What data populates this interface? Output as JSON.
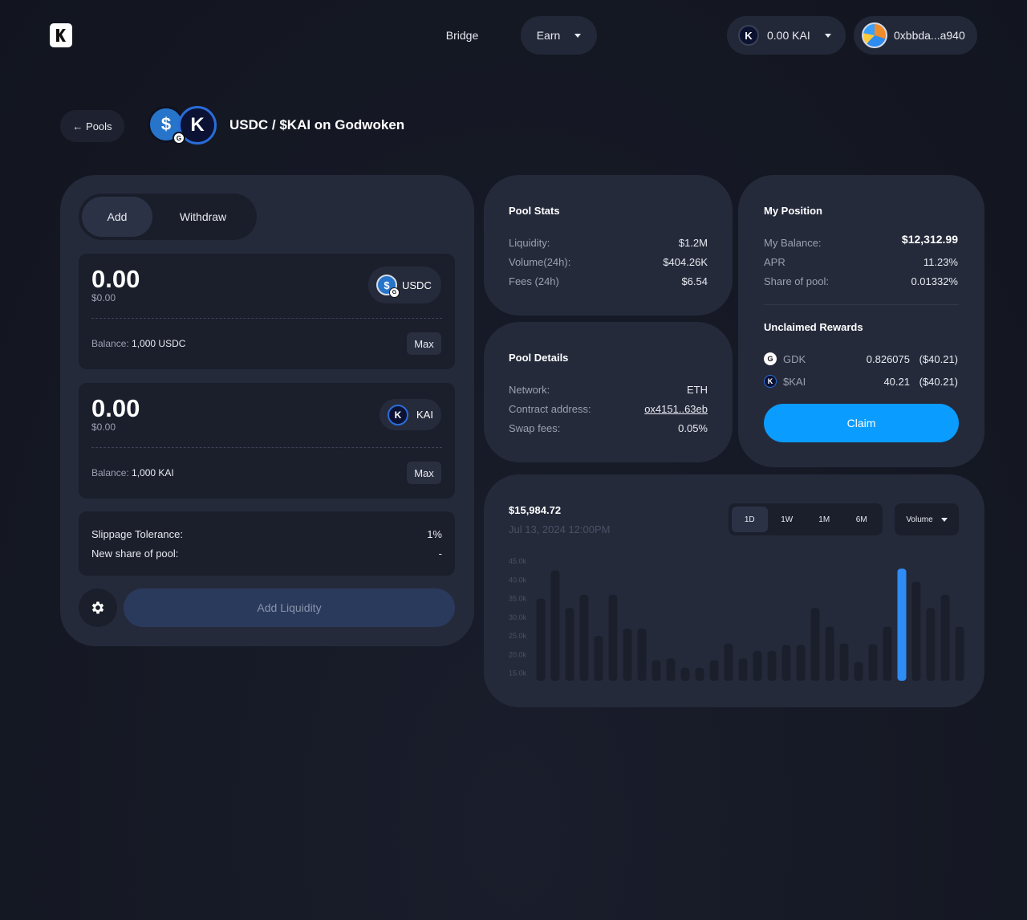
{
  "header": {
    "nav_bridge": "Bridge",
    "nav_earn": "Earn",
    "balance": "0.00 KAI",
    "address": "0xbbda...a940"
  },
  "title_row": {
    "back_label": "← Pools",
    "pool_title": "USDC / $KAI on Godwoken"
  },
  "liquidity": {
    "tabs": [
      "Add",
      "Withdraw"
    ],
    "active_tab": "Add",
    "token1": {
      "amount": "0.00",
      "usd": "$0.00",
      "symbol": "USDC",
      "balance_label": "Balance:",
      "balance_value": "1,000 USDC",
      "max": "Max"
    },
    "token2": {
      "amount": "0.00",
      "usd": "$0.00",
      "symbol": "KAI",
      "balance_label": "Balance:",
      "balance_value": "1,000 KAI",
      "max": "Max"
    },
    "slippage_label": "Slippage Tolerance:",
    "slippage_value": "1%",
    "share_label": "New share of pool:",
    "share_value": "-",
    "submit": "Add Liquidity"
  },
  "pool_stats": {
    "title": "Pool Stats",
    "rows": [
      {
        "label": "Liquidity:",
        "value": "$1.2M"
      },
      {
        "label": "Volume(24h):",
        "value": "$404.26K"
      },
      {
        "label": "Fees (24h)",
        "value": "$6.54"
      }
    ]
  },
  "pool_details": {
    "title": "Pool Details",
    "rows": [
      {
        "label": "Network:",
        "value": "ETH"
      },
      {
        "label": "Contract address:",
        "value": "ox4151..63eb"
      },
      {
        "label": "Swap fees:",
        "value": "0.05%"
      }
    ]
  },
  "position": {
    "title": "My Position",
    "rows": [
      {
        "label": "My Balance:",
        "value": "$12,312.99"
      },
      {
        "label": "APR",
        "value": "11.23%"
      },
      {
        "label": "Share of pool:",
        "value": "0.01332%"
      }
    ],
    "rewards_title": "Unclaimed Rewards",
    "rewards": [
      {
        "token": "GDK",
        "amount": "0.826075",
        "usd": "($40.21)"
      },
      {
        "token": "$KAI",
        "amount": "40.21",
        "usd": "($40.21)"
      }
    ],
    "claim": "Claim"
  },
  "chart_header": {
    "value": "$15,984.72",
    "date": "Jul 13, 2024 12:00PM",
    "ranges": [
      "1D",
      "1W",
      "1M",
      "6M"
    ],
    "active_range": "1D",
    "metric": "Volume"
  },
  "colors": {
    "accent": "#0a9cff",
    "bar": "#1b1f2c",
    "bar_highlight": "#2e8cf5"
  },
  "chart_data": {
    "type": "bar",
    "title": "",
    "xlabel": "",
    "ylabel": "",
    "ylim": [
      13000,
      45000
    ],
    "yticks": [
      "45.0k",
      "40.0k",
      "35.0k",
      "30.0k",
      "25.0k",
      "20.0k",
      "15.0k"
    ],
    "ytick_values": [
      45000,
      40000,
      35000,
      30000,
      25000,
      20000,
      15000
    ],
    "values": [
      35000,
      42500,
      32500,
      36000,
      25000,
      36000,
      27000,
      27000,
      18500,
      19000,
      16500,
      16500,
      18500,
      23000,
      19000,
      21000,
      21000,
      22600,
      22600,
      32500,
      27500,
      23000,
      18000,
      22800,
      27500,
      43000,
      39500,
      32500,
      36000,
      27500
    ],
    "highlight_index": 25
  }
}
